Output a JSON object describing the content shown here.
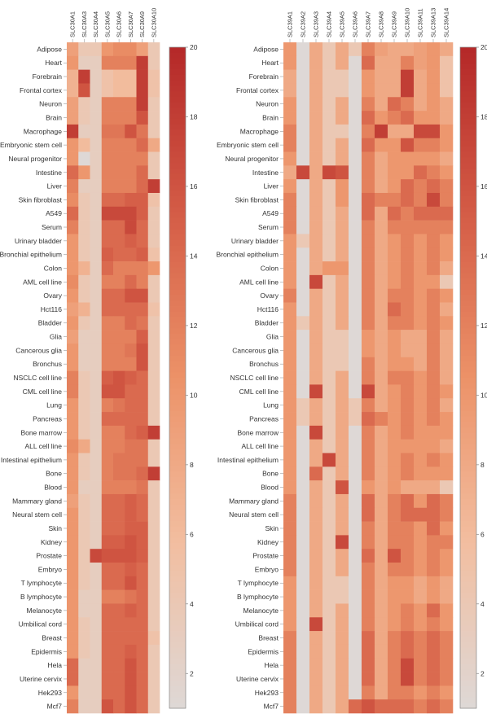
{
  "chart_data": [
    {
      "type": "heatmap",
      "title": "",
      "xlabel": "",
      "ylabel": "",
      "genes": [
        "SLC30A1",
        "SLC30A3",
        "SLC30A4",
        "SLC30A5",
        "SLC30A6",
        "SLC30A7",
        "SLC30A9",
        "SLC30A10"
      ],
      "tissues": [
        "Adipose",
        "Heart",
        "Forebrain",
        "Frontal cortex",
        "Neuron",
        "Brain",
        "Macrophage",
        "Embryonic stem cell",
        "Neural progenitor",
        "Intestine",
        "Liver",
        "Skin fibroblast",
        "A549",
        "Serum",
        "Urinary bladder",
        "Bronchial epithelium",
        "Colon",
        "AML cell line",
        "Ovary",
        "Hct116",
        "Bladder",
        "Glia",
        "Cancerous glia",
        "Bronchus",
        "NSCLC cell line",
        "CML cell line",
        "Lung",
        "Pancreas",
        "Bone marrow",
        "ALL cell line",
        "Intestinal epithelium",
        "Bone",
        "Blood",
        "Mammary gland",
        "Neural stem cell",
        "Skin",
        "Kidney",
        "Prostate",
        "Embryo",
        "T lymphocyte",
        "B lymphocyte",
        "Melanocyte",
        "Umbilical cord",
        "Breast",
        "Epidermis",
        "Hela",
        "Uterine cervix",
        "Hek293",
        "Mcf7"
      ],
      "values": [
        [
          9,
          4,
          4,
          10,
          11,
          11,
          9,
          4
        ],
        [
          10,
          3,
          3,
          12,
          12,
          12,
          18,
          4
        ],
        [
          7,
          18,
          3,
          5,
          6,
          6,
          18,
          5
        ],
        [
          7,
          16,
          3,
          5,
          6,
          6,
          18,
          5
        ],
        [
          9,
          4,
          3,
          12,
          12,
          12,
          18,
          4
        ],
        [
          9,
          4,
          3,
          12,
          12,
          12,
          16,
          4
        ],
        [
          18,
          3,
          3,
          13,
          13,
          16,
          13,
          4
        ],
        [
          10,
          6,
          3,
          12,
          12,
          12,
          14,
          8
        ],
        [
          10,
          1,
          3,
          12,
          12,
          12,
          12,
          4
        ],
        [
          14,
          10,
          3,
          12,
          12,
          12,
          14,
          4
        ],
        [
          12,
          3,
          3,
          12,
          12,
          12,
          14,
          18
        ],
        [
          11,
          4,
          3,
          14,
          14,
          15,
          15,
          5
        ],
        [
          14,
          4,
          3,
          17,
          17,
          17,
          15,
          4
        ],
        [
          12,
          4,
          3,
          14,
          14,
          17,
          14,
          4
        ],
        [
          10,
          4,
          3,
          14,
          14,
          15,
          14,
          4
        ],
        [
          10,
          4,
          3,
          15,
          14,
          14,
          15,
          5
        ],
        [
          10,
          7,
          3,
          14,
          12,
          12,
          12,
          10
        ],
        [
          11,
          4,
          3,
          12,
          12,
          14,
          12,
          4
        ],
        [
          10,
          4,
          3,
          14,
          14,
          16,
          16,
          4
        ],
        [
          9,
          7,
          3,
          14,
          14,
          14,
          14,
          5
        ],
        [
          10,
          4,
          3,
          12,
          12,
          14,
          13,
          4
        ],
        [
          9,
          3,
          3,
          12,
          12,
          12,
          15,
          4
        ],
        [
          10,
          3,
          3,
          12,
          12,
          13,
          16,
          4
        ],
        [
          10,
          3,
          3,
          12,
          12,
          12,
          16,
          4
        ],
        [
          12,
          4,
          3,
          15,
          16,
          15,
          14,
          4
        ],
        [
          12,
          4,
          3,
          16,
          16,
          14,
          14,
          4
        ],
        [
          10,
          4,
          3,
          12,
          13,
          14,
          14,
          4
        ],
        [
          10,
          4,
          3,
          14,
          14,
          14,
          14,
          4
        ],
        [
          10,
          4,
          3,
          12,
          12,
          14,
          15,
          18
        ],
        [
          11,
          8,
          3,
          12,
          12,
          13,
          13,
          4
        ],
        [
          10,
          4,
          3,
          12,
          13,
          13,
          13,
          4
        ],
        [
          10,
          4,
          3,
          12,
          13,
          13,
          14,
          18
        ],
        [
          10,
          3,
          3,
          12,
          12,
          12,
          13,
          4
        ],
        [
          9,
          4,
          3,
          14,
          14,
          15,
          14,
          4
        ],
        [
          10,
          4,
          3,
          14,
          14,
          15,
          14,
          4
        ],
        [
          10,
          4,
          3,
          14,
          14,
          15,
          15,
          4
        ],
        [
          10,
          4,
          3,
          15,
          15,
          16,
          15,
          4
        ],
        [
          10,
          4,
          17,
          16,
          16,
          16,
          15,
          4
        ],
        [
          10,
          4,
          3,
          14,
          14,
          15,
          14,
          4
        ],
        [
          10,
          4,
          3,
          14,
          14,
          16,
          14,
          4
        ],
        [
          10,
          3,
          3,
          12,
          12,
          13,
          14,
          4
        ],
        [
          10,
          3,
          3,
          14,
          14,
          15,
          14,
          4
        ],
        [
          10,
          4,
          3,
          14,
          14,
          14,
          14,
          4
        ],
        [
          10,
          4,
          3,
          14,
          14,
          14,
          14,
          5
        ],
        [
          10,
          4,
          3,
          14,
          14,
          15,
          14,
          4
        ],
        [
          14,
          3,
          3,
          14,
          14,
          16,
          14,
          4
        ],
        [
          14,
          3,
          3,
          14,
          14,
          16,
          14,
          4
        ],
        [
          10,
          3,
          3,
          14,
          14,
          16,
          14,
          4
        ],
        [
          12,
          3,
          3,
          16,
          14,
          16,
          14,
          4
        ]
      ],
      "colorbar": {
        "min": 1,
        "max": 20,
        "ticks": [
          2,
          4,
          6,
          8,
          10,
          12,
          14,
          16,
          18,
          20
        ]
      }
    },
    {
      "type": "heatmap",
      "title": "",
      "xlabel": "",
      "ylabel": "",
      "genes": [
        "SLC39A1",
        "SLC39A2",
        "SLC39A3",
        "SLC39A4",
        "SLC39A5",
        "SLC39A6",
        "SLC39A7",
        "SLC39A8",
        "SLC39A9",
        "SLC39A10",
        "SLC39A11",
        "SLC39A13",
        "SLC39A14"
      ],
      "tissues": [
        "Adipose",
        "Heart",
        "Forebrain",
        "Frontal cortex",
        "Neuron",
        "Brain",
        "Macrophage",
        "Embryonic stem cell",
        "Neural progenitor",
        "Intestine",
        "Liver",
        "Skin fibroblast",
        "A549",
        "Serum",
        "Urinary bladder",
        "Bronchial epithelium",
        "Colon",
        "AML cell line",
        "Ovary",
        "Hct116",
        "Bladder",
        "Glia",
        "Cancerous glia",
        "Bronchus",
        "NSCLC cell line",
        "CML cell line",
        "Lung",
        "Pancreas",
        "Bone marrow",
        "ALL cell line",
        "Intestinal epithelium",
        "Bone",
        "Blood",
        "Mammary gland",
        "Neural stem cell",
        "Skin",
        "Kidney",
        "Prostate",
        "Embryo",
        "T lymphocyte",
        "B lymphocyte",
        "Melanocyte",
        "Umbilical cord",
        "Breast",
        "Epidermis",
        "Hela",
        "Uterine cervix",
        "Hek293",
        "Mcf7"
      ],
      "values": [
        [
          10,
          1,
          8,
          4,
          8,
          4,
          12,
          9,
          8,
          8,
          9,
          10,
          8
        ],
        [
          10,
          1,
          8,
          4,
          8,
          1,
          14,
          8,
          8,
          12,
          9,
          10,
          5
        ],
        [
          8,
          1,
          8,
          4,
          4,
          1,
          10,
          8,
          8,
          18,
          8,
          10,
          5
        ],
        [
          8,
          1,
          8,
          4,
          4,
          1,
          10,
          8,
          8,
          18,
          8,
          10,
          5
        ],
        [
          10,
          1,
          8,
          4,
          8,
          1,
          12,
          8,
          14,
          12,
          8,
          10,
          8
        ],
        [
          10,
          1,
          8,
          4,
          8,
          1,
          14,
          10,
          12,
          14,
          10,
          10,
          8
        ],
        [
          12,
          1,
          8,
          4,
          4,
          1,
          12,
          18,
          8,
          8,
          17,
          17,
          10
        ],
        [
          12,
          1,
          8,
          4,
          8,
          1,
          14,
          10,
          10,
          16,
          12,
          12,
          10
        ],
        [
          10,
          1,
          8,
          4,
          8,
          1,
          12,
          8,
          10,
          10,
          10,
          10,
          8
        ],
        [
          8,
          17,
          8,
          17,
          16,
          1,
          12,
          8,
          10,
          10,
          14,
          12,
          10
        ],
        [
          10,
          1,
          8,
          4,
          10,
          1,
          12,
          8,
          10,
          14,
          12,
          14,
          12
        ],
        [
          12,
          1,
          8,
          4,
          10,
          1,
          14,
          12,
          12,
          14,
          12,
          17,
          12
        ],
        [
          12,
          1,
          8,
          4,
          8,
          1,
          14,
          8,
          14,
          12,
          14,
          14,
          14
        ],
        [
          12,
          1,
          8,
          4,
          8,
          1,
          12,
          8,
          12,
          12,
          12,
          12,
          12
        ],
        [
          10,
          4,
          8,
          4,
          8,
          1,
          12,
          8,
          10,
          12,
          10,
          12,
          10
        ],
        [
          10,
          1,
          8,
          4,
          8,
          1,
          12,
          8,
          10,
          12,
          10,
          12,
          10
        ],
        [
          10,
          1,
          8,
          10,
          10,
          1,
          12,
          8,
          10,
          12,
          10,
          12,
          8
        ],
        [
          10,
          1,
          17,
          4,
          8,
          1,
          12,
          8,
          10,
          12,
          10,
          10,
          4
        ],
        [
          12,
          1,
          8,
          4,
          8,
          1,
          12,
          8,
          12,
          12,
          10,
          12,
          10
        ],
        [
          10,
          1,
          8,
          4,
          8,
          1,
          12,
          8,
          14,
          12,
          10,
          12,
          8
        ],
        [
          10,
          4,
          8,
          4,
          8,
          1,
          12,
          8,
          12,
          12,
          10,
          12,
          10
        ],
        [
          10,
          1,
          8,
          4,
          4,
          1,
          10,
          8,
          10,
          8,
          8,
          12,
          8
        ],
        [
          10,
          1,
          8,
          4,
          4,
          1,
          10,
          8,
          10,
          8,
          8,
          12,
          8
        ],
        [
          10,
          1,
          8,
          4,
          4,
          1,
          12,
          8,
          10,
          10,
          8,
          12,
          8
        ],
        [
          10,
          1,
          8,
          4,
          8,
          1,
          12,
          8,
          12,
          12,
          10,
          12,
          8
        ],
        [
          10,
          1,
          17,
          4,
          8,
          1,
          17,
          8,
          10,
          12,
          10,
          12,
          10
        ],
        [
          10,
          4,
          8,
          4,
          8,
          4,
          12,
          8,
          10,
          12,
          10,
          12,
          8
        ],
        [
          10,
          4,
          8,
          4,
          8,
          4,
          14,
          12,
          10,
          12,
          10,
          12,
          10
        ],
        [
          10,
          1,
          17,
          4,
          8,
          1,
          12,
          8,
          10,
          12,
          10,
          10,
          10
        ],
        [
          10,
          1,
          8,
          4,
          8,
          1,
          12,
          8,
          10,
          10,
          10,
          10,
          8
        ],
        [
          10,
          1,
          8,
          17,
          8,
          1,
          12,
          8,
          10,
          12,
          10,
          12,
          10
        ],
        [
          10,
          1,
          14,
          4,
          8,
          1,
          12,
          8,
          10,
          12,
          10,
          10,
          10
        ],
        [
          10,
          1,
          8,
          4,
          16,
          1,
          10,
          8,
          10,
          8,
          8,
          8,
          4
        ],
        [
          12,
          1,
          8,
          4,
          8,
          1,
          14,
          8,
          12,
          14,
          10,
          14,
          12
        ],
        [
          12,
          1,
          8,
          4,
          8,
          1,
          14,
          8,
          12,
          14,
          14,
          14,
          12
        ],
        [
          12,
          1,
          8,
          4,
          8,
          1,
          12,
          8,
          12,
          12,
          10,
          14,
          10
        ],
        [
          12,
          1,
          8,
          4,
          17,
          1,
          12,
          8,
          12,
          12,
          10,
          12,
          12
        ],
        [
          12,
          1,
          8,
          4,
          8,
          1,
          14,
          8,
          16,
          12,
          10,
          12,
          10
        ],
        [
          12,
          1,
          8,
          4,
          8,
          1,
          12,
          8,
          12,
          12,
          10,
          12,
          10
        ],
        [
          10,
          1,
          8,
          4,
          4,
          1,
          12,
          8,
          10,
          10,
          8,
          10,
          8
        ],
        [
          10,
          1,
          8,
          4,
          4,
          1,
          12,
          8,
          10,
          10,
          8,
          10,
          8
        ],
        [
          10,
          1,
          8,
          4,
          8,
          1,
          12,
          8,
          10,
          12,
          10,
          14,
          10
        ],
        [
          10,
          1,
          17,
          4,
          8,
          1,
          12,
          8,
          10,
          12,
          10,
          12,
          10
        ],
        [
          12,
          1,
          8,
          4,
          8,
          1,
          14,
          8,
          12,
          14,
          12,
          14,
          12
        ],
        [
          12,
          1,
          8,
          4,
          8,
          1,
          14,
          8,
          12,
          14,
          12,
          14,
          12
        ],
        [
          12,
          1,
          8,
          4,
          8,
          1,
          14,
          8,
          12,
          17,
          12,
          14,
          12
        ],
        [
          12,
          1,
          8,
          4,
          8,
          1,
          14,
          8,
          12,
          17,
          12,
          14,
          12
        ],
        [
          12,
          1,
          8,
          4,
          8,
          1,
          12,
          8,
          12,
          12,
          10,
          12,
          10
        ],
        [
          12,
          1,
          8,
          4,
          8,
          14,
          16,
          14,
          14,
          14,
          12,
          14,
          12
        ]
      ],
      "colorbar": {
        "min": 1,
        "max": 20,
        "ticks": [
          2,
          4,
          6,
          8,
          10,
          12,
          14,
          16,
          18,
          20
        ]
      }
    }
  ]
}
